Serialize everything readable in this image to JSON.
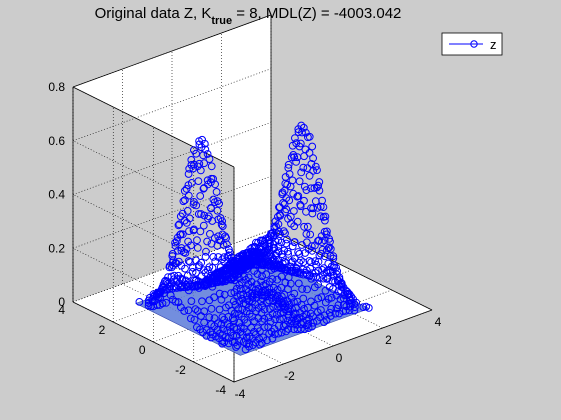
{
  "figure": {
    "background": "#cccccc",
    "axes_background": "#ffffff",
    "grid": true,
    "grid_style": "dotted",
    "view": "3d"
  },
  "chart_data": {
    "type": "surface+scatter3d",
    "title": {
      "main": "Original data Z, K",
      "subscript": "true",
      "rest": " = 8, MDL(Z) = -4003.042"
    },
    "xlabel": "",
    "ylabel": "",
    "zlabel": "",
    "xlim": [
      -4,
      4
    ],
    "ylim": [
      -4,
      4
    ],
    "zlim": [
      0,
      0.8
    ],
    "xticks": [
      -4,
      -2,
      0,
      2,
      4
    ],
    "yticks": [
      -4,
      -2,
      0,
      2,
      4
    ],
    "zticks": [
      0,
      0.2,
      0.4,
      0.6,
      0.8
    ],
    "xtick_labels": [
      "-4",
      "-2",
      "0",
      "2",
      "4"
    ],
    "ytick_labels": [
      "-4",
      "-2",
      "0",
      "2",
      "4"
    ],
    "ztick_labels": [
      "0",
      "0.2",
      "0.4",
      "0.6",
      "0.8"
    ],
    "legend": {
      "position": "top-right",
      "entries": [
        {
          "label": "z",
          "marker": "circle",
          "color": "#0000ff"
        }
      ]
    },
    "series_color": "#0000ff",
    "surface_color": "#5a7ad8",
    "peaks": [
      {
        "x": -1.6,
        "y": 0.6,
        "z": 0.65
      },
      {
        "x": 1.4,
        "y": -0.8,
        "z": 0.65
      },
      {
        "x": 0.0,
        "y": -0.3,
        "z": 0.23
      },
      {
        "x": -0.9,
        "y": -1.6,
        "z": 0.12
      },
      {
        "x": 0.8,
        "y": 1.2,
        "z": 0.12
      }
    ]
  }
}
